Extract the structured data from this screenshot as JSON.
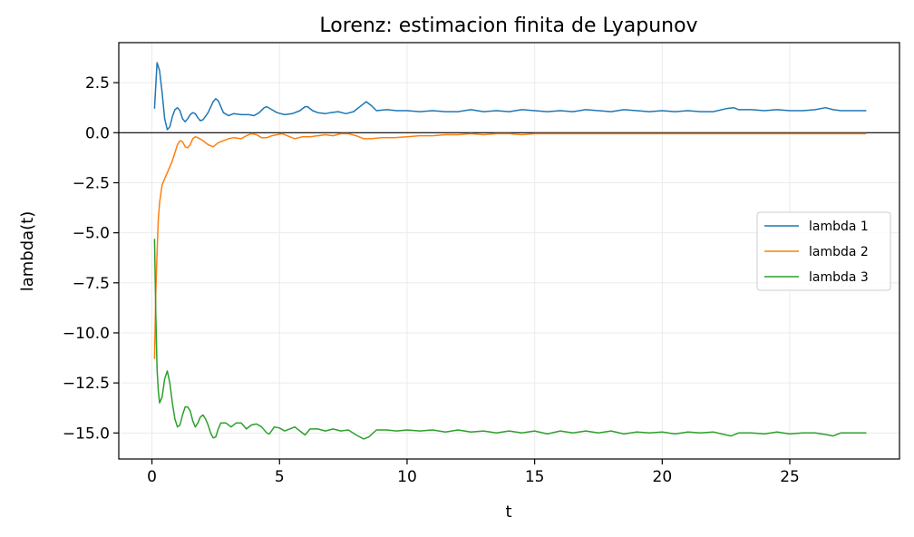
{
  "chart_data": {
    "type": "line",
    "title": "Lorenz: estimacion finita de Lyapunov",
    "xlabel": "t",
    "ylabel": "lambda(t)",
    "xlim": [
      -1.3,
      29.3
    ],
    "ylim": [
      -16.3,
      4.5
    ],
    "xticks": [
      0,
      5,
      10,
      15,
      20,
      25
    ],
    "xtick_labels": [
      "0",
      "5",
      "10",
      "15",
      "20",
      "25"
    ],
    "yticks": [
      2.5,
      0.0,
      -2.5,
      -5.0,
      -7.5,
      -10.0,
      -12.5,
      -15.0
    ],
    "ytick_labels": [
      "2.5",
      "0.0",
      "−2.5",
      "−5.0",
      "−7.5",
      "−10.0",
      "−12.5",
      "−15.0"
    ],
    "grid": true,
    "reference_line_y": 0,
    "legend_position": "center-right",
    "series": [
      {
        "name": "lambda 1",
        "color": "#1f77b4",
        "points": [
          [
            0.1,
            1.2
          ],
          [
            0.2,
            3.5
          ],
          [
            0.3,
            3.1
          ],
          [
            0.4,
            2.0
          ],
          [
            0.5,
            0.7
          ],
          [
            0.6,
            0.15
          ],
          [
            0.7,
            0.3
          ],
          [
            0.8,
            0.8
          ],
          [
            0.9,
            1.15
          ],
          [
            1.0,
            1.25
          ],
          [
            1.1,
            1.1
          ],
          [
            1.2,
            0.7
          ],
          [
            1.3,
            0.55
          ],
          [
            1.4,
            0.7
          ],
          [
            1.5,
            0.9
          ],
          [
            1.6,
            1.0
          ],
          [
            1.7,
            0.95
          ],
          [
            1.8,
            0.75
          ],
          [
            1.9,
            0.6
          ],
          [
            2.0,
            0.65
          ],
          [
            2.2,
            1.0
          ],
          [
            2.4,
            1.55
          ],
          [
            2.5,
            1.7
          ],
          [
            2.6,
            1.6
          ],
          [
            2.7,
            1.3
          ],
          [
            2.8,
            1.0
          ],
          [
            3.0,
            0.85
          ],
          [
            3.2,
            0.95
          ],
          [
            3.5,
            0.9
          ],
          [
            3.8,
            0.9
          ],
          [
            4.0,
            0.85
          ],
          [
            4.2,
            1.0
          ],
          [
            4.4,
            1.25
          ],
          [
            4.5,
            1.3
          ],
          [
            4.7,
            1.15
          ],
          [
            4.9,
            1.0
          ],
          [
            5.2,
            0.9
          ],
          [
            5.5,
            0.95
          ],
          [
            5.8,
            1.1
          ],
          [
            6.0,
            1.3
          ],
          [
            6.1,
            1.3
          ],
          [
            6.3,
            1.1
          ],
          [
            6.5,
            1.0
          ],
          [
            6.8,
            0.95
          ],
          [
            7.0,
            1.0
          ],
          [
            7.3,
            1.05
          ],
          [
            7.6,
            0.95
          ],
          [
            7.9,
            1.05
          ],
          [
            8.1,
            1.25
          ],
          [
            8.3,
            1.45
          ],
          [
            8.4,
            1.55
          ],
          [
            8.6,
            1.35
          ],
          [
            8.8,
            1.1
          ],
          [
            9.2,
            1.15
          ],
          [
            9.6,
            1.1
          ],
          [
            10,
            1.1
          ],
          [
            10.5,
            1.05
          ],
          [
            11,
            1.1
          ],
          [
            11.5,
            1.05
          ],
          [
            12,
            1.05
          ],
          [
            12.5,
            1.15
          ],
          [
            13,
            1.05
          ],
          [
            13.5,
            1.1
          ],
          [
            14,
            1.05
          ],
          [
            14.5,
            1.15
          ],
          [
            15,
            1.1
          ],
          [
            15.5,
            1.05
          ],
          [
            16,
            1.1
          ],
          [
            16.5,
            1.05
          ],
          [
            17,
            1.15
          ],
          [
            17.5,
            1.1
          ],
          [
            18,
            1.05
          ],
          [
            18.5,
            1.15
          ],
          [
            19,
            1.1
          ],
          [
            19.5,
            1.05
          ],
          [
            20,
            1.1
          ],
          [
            20.5,
            1.05
          ],
          [
            21,
            1.1
          ],
          [
            21.5,
            1.05
          ],
          [
            22,
            1.05
          ],
          [
            22.5,
            1.2
          ],
          [
            22.8,
            1.25
          ],
          [
            23,
            1.15
          ],
          [
            23.5,
            1.15
          ],
          [
            24,
            1.1
          ],
          [
            24.5,
            1.15
          ],
          [
            25,
            1.1
          ],
          [
            25.5,
            1.1
          ],
          [
            26,
            1.15
          ],
          [
            26.4,
            1.25
          ],
          [
            26.7,
            1.15
          ],
          [
            27,
            1.1
          ],
          [
            27.5,
            1.1
          ],
          [
            28,
            1.1
          ]
        ]
      },
      {
        "name": "lambda 2",
        "color": "#ff7f0e",
        "points": [
          [
            0.1,
            -11.3
          ],
          [
            0.15,
            -8.0
          ],
          [
            0.2,
            -6.0
          ],
          [
            0.25,
            -4.3
          ],
          [
            0.3,
            -3.5
          ],
          [
            0.4,
            -2.6
          ],
          [
            0.5,
            -2.3
          ],
          [
            0.6,
            -2.0
          ],
          [
            0.7,
            -1.7
          ],
          [
            0.8,
            -1.4
          ],
          [
            0.9,
            -1.0
          ],
          [
            1.0,
            -0.6
          ],
          [
            1.1,
            -0.4
          ],
          [
            1.2,
            -0.45
          ],
          [
            1.3,
            -0.7
          ],
          [
            1.4,
            -0.75
          ],
          [
            1.5,
            -0.6
          ],
          [
            1.6,
            -0.3
          ],
          [
            1.7,
            -0.2
          ],
          [
            1.8,
            -0.25
          ],
          [
            2.0,
            -0.4
          ],
          [
            2.2,
            -0.6
          ],
          [
            2.4,
            -0.7
          ],
          [
            2.6,
            -0.5
          ],
          [
            2.8,
            -0.4
          ],
          [
            3.0,
            -0.3
          ],
          [
            3.2,
            -0.25
          ],
          [
            3.5,
            -0.3
          ],
          [
            3.7,
            -0.15
          ],
          [
            3.9,
            -0.05
          ],
          [
            4.1,
            -0.1
          ],
          [
            4.3,
            -0.25
          ],
          [
            4.5,
            -0.25
          ],
          [
            4.7,
            -0.15
          ],
          [
            4.9,
            -0.1
          ],
          [
            5.1,
            -0.05
          ],
          [
            5.3,
            -0.15
          ],
          [
            5.6,
            -0.3
          ],
          [
            5.9,
            -0.2
          ],
          [
            6.2,
            -0.2
          ],
          [
            6.5,
            -0.15
          ],
          [
            6.8,
            -0.1
          ],
          [
            7.1,
            -0.15
          ],
          [
            7.4,
            -0.05
          ],
          [
            7.7,
            -0.05
          ],
          [
            8.0,
            -0.15
          ],
          [
            8.3,
            -0.3
          ],
          [
            8.6,
            -0.3
          ],
          [
            9.0,
            -0.25
          ],
          [
            9.5,
            -0.25
          ],
          [
            10,
            -0.2
          ],
          [
            10.5,
            -0.15
          ],
          [
            11,
            -0.15
          ],
          [
            11.5,
            -0.1
          ],
          [
            12,
            -0.1
          ],
          [
            12.5,
            -0.05
          ],
          [
            13,
            -0.1
          ],
          [
            13.5,
            -0.05
          ],
          [
            14,
            -0.05
          ],
          [
            14.5,
            -0.1
          ],
          [
            15,
            -0.05
          ],
          [
            16,
            -0.05
          ],
          [
            17,
            -0.05
          ],
          [
            18,
            -0.05
          ],
          [
            19,
            -0.05
          ],
          [
            20,
            -0.05
          ],
          [
            21,
            -0.05
          ],
          [
            22,
            -0.05
          ],
          [
            23,
            -0.05
          ],
          [
            24,
            -0.05
          ],
          [
            25,
            -0.05
          ],
          [
            26,
            -0.05
          ],
          [
            27,
            -0.05
          ],
          [
            28,
            -0.05
          ]
        ]
      },
      {
        "name": "lambda 3",
        "color": "#2ca02c",
        "points": [
          [
            0.1,
            -5.3
          ],
          [
            0.15,
            -9.0
          ],
          [
            0.2,
            -11.8
          ],
          [
            0.25,
            -12.9
          ],
          [
            0.3,
            -13.5
          ],
          [
            0.4,
            -13.2
          ],
          [
            0.5,
            -12.3
          ],
          [
            0.6,
            -11.9
          ],
          [
            0.7,
            -12.5
          ],
          [
            0.8,
            -13.5
          ],
          [
            0.9,
            -14.3
          ],
          [
            1.0,
            -14.7
          ],
          [
            1.1,
            -14.6
          ],
          [
            1.2,
            -14.1
          ],
          [
            1.3,
            -13.7
          ],
          [
            1.4,
            -13.7
          ],
          [
            1.5,
            -13.9
          ],
          [
            1.6,
            -14.4
          ],
          [
            1.7,
            -14.7
          ],
          [
            1.8,
            -14.5
          ],
          [
            1.9,
            -14.2
          ],
          [
            2.0,
            -14.1
          ],
          [
            2.1,
            -14.3
          ],
          [
            2.2,
            -14.6
          ],
          [
            2.3,
            -15.0
          ],
          [
            2.4,
            -15.25
          ],
          [
            2.5,
            -15.2
          ],
          [
            2.6,
            -14.8
          ],
          [
            2.7,
            -14.5
          ],
          [
            2.9,
            -14.5
          ],
          [
            3.1,
            -14.7
          ],
          [
            3.3,
            -14.5
          ],
          [
            3.5,
            -14.5
          ],
          [
            3.7,
            -14.8
          ],
          [
            3.9,
            -14.6
          ],
          [
            4.1,
            -14.55
          ],
          [
            4.3,
            -14.7
          ],
          [
            4.5,
            -15.0
          ],
          [
            4.6,
            -15.05
          ],
          [
            4.8,
            -14.7
          ],
          [
            5.0,
            -14.75
          ],
          [
            5.2,
            -14.9
          ],
          [
            5.4,
            -14.8
          ],
          [
            5.6,
            -14.7
          ],
          [
            5.8,
            -14.9
          ],
          [
            6.0,
            -15.1
          ],
          [
            6.2,
            -14.8
          ],
          [
            6.5,
            -14.8
          ],
          [
            6.8,
            -14.9
          ],
          [
            7.1,
            -14.8
          ],
          [
            7.4,
            -14.9
          ],
          [
            7.7,
            -14.85
          ],
          [
            8.0,
            -15.1
          ],
          [
            8.3,
            -15.3
          ],
          [
            8.5,
            -15.2
          ],
          [
            8.8,
            -14.85
          ],
          [
            9.2,
            -14.85
          ],
          [
            9.6,
            -14.9
          ],
          [
            10,
            -14.85
          ],
          [
            10.5,
            -14.9
          ],
          [
            11,
            -14.85
          ],
          [
            11.5,
            -14.95
          ],
          [
            12,
            -14.85
          ],
          [
            12.5,
            -14.95
          ],
          [
            13,
            -14.9
          ],
          [
            13.5,
            -15.0
          ],
          [
            14,
            -14.9
          ],
          [
            14.5,
            -15.0
          ],
          [
            15,
            -14.9
          ],
          [
            15.5,
            -15.05
          ],
          [
            16,
            -14.9
          ],
          [
            16.5,
            -15.0
          ],
          [
            17,
            -14.9
          ],
          [
            17.5,
            -15.0
          ],
          [
            18,
            -14.9
          ],
          [
            18.5,
            -15.05
          ],
          [
            19,
            -14.95
          ],
          [
            19.5,
            -15.0
          ],
          [
            20,
            -14.95
          ],
          [
            20.5,
            -15.05
          ],
          [
            21,
            -14.95
          ],
          [
            21.5,
            -15.0
          ],
          [
            22,
            -14.95
          ],
          [
            22.5,
            -15.1
          ],
          [
            22.7,
            -15.15
          ],
          [
            23,
            -15.0
          ],
          [
            23.5,
            -15.0
          ],
          [
            24,
            -15.05
          ],
          [
            24.5,
            -14.95
          ],
          [
            25,
            -15.05
          ],
          [
            25.5,
            -15.0
          ],
          [
            26,
            -15.0
          ],
          [
            26.5,
            -15.1
          ],
          [
            26.7,
            -15.15
          ],
          [
            27,
            -15.0
          ],
          [
            27.5,
            -15.0
          ],
          [
            28,
            -15.0
          ]
        ]
      }
    ]
  }
}
